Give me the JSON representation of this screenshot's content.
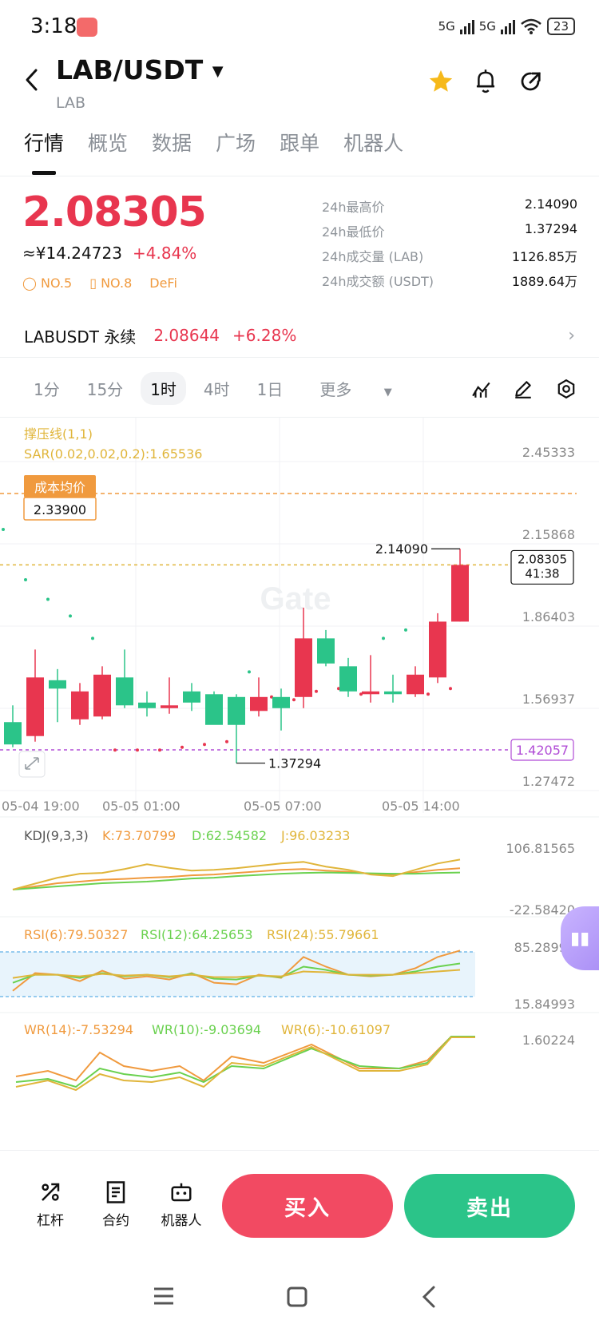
{
  "status_bar": {
    "time": "3:18",
    "network1": "5G",
    "network2": "5G",
    "battery": "23"
  },
  "header": {
    "pair": "LAB/USDT",
    "subtitle": "LAB"
  },
  "tabs": [
    {
      "label": "行情",
      "active": true
    },
    {
      "label": "概览",
      "active": false
    },
    {
      "label": "数据",
      "active": false
    },
    {
      "label": "广场",
      "active": false
    },
    {
      "label": "跟单",
      "active": false
    },
    {
      "label": "机器人",
      "active": false
    }
  ],
  "ticker": {
    "price": "2.08305",
    "cny": "≈¥14.24723",
    "change": "+4.84%",
    "tags": [
      "NO.5",
      "NO.8",
      "DeFi"
    ],
    "stats": [
      {
        "label": "24h最高价",
        "value": "2.14090"
      },
      {
        "label": "24h最低价",
        "value": "1.37294"
      },
      {
        "label": "24h成交量 (LAB)",
        "value": "1126.85万"
      },
      {
        "label": "24h成交额 (USDT)",
        "value": "1889.64万"
      }
    ]
  },
  "perpetual": {
    "name": "LABUSDT 永续",
    "price": "2.08644",
    "change": "+6.28%"
  },
  "timeframes": [
    {
      "label": "1分",
      "active": false
    },
    {
      "label": "15分",
      "active": false
    },
    {
      "label": "1时",
      "active": true
    },
    {
      "label": "4时",
      "active": false
    },
    {
      "label": "1日",
      "active": false
    },
    {
      "label": "更多",
      "active": false
    }
  ],
  "colors": {
    "up": "#e8364f",
    "down": "#2bc489",
    "orange": "#f09a3e",
    "purple": "#b04bd6",
    "yellow": "#e0b53a",
    "green_line": "#6ad14f"
  },
  "chart_data": {
    "type": "candlestick",
    "indicator_label": "撑压线(1,1)",
    "sar_label": "SAR(0.02,0.02,0.2):1.65536",
    "cost_label": "成本均价",
    "cost_value": "2.33900",
    "cost_line": 2.339,
    "support_value": "1.42057",
    "support_line": 1.42057,
    "current_price": "2.08305",
    "countdown": "41:38",
    "high_marker": "2.14090",
    "low_marker": "1.37294",
    "watermark": "Gate",
    "ylim": [
      1.27472,
      2.45333
    ],
    "y_ticks": [
      "2.45333",
      "2.15868",
      "1.86403",
      "1.56937",
      "1.27472"
    ],
    "y_tick_values": [
      2.45333,
      2.15868,
      1.86403,
      1.56937,
      1.27472
    ],
    "x_ticks": [
      "05-04 19:00",
      "05-05 01:00",
      "05-05 07:00",
      "05-05 14:00"
    ],
    "candles": [
      {
        "o": 1.52,
        "h": 1.58,
        "l": 1.43,
        "c": 1.44
      },
      {
        "o": 1.47,
        "h": 1.78,
        "l": 1.45,
        "c": 1.68
      },
      {
        "o": 1.67,
        "h": 1.71,
        "l": 1.52,
        "c": 1.64
      },
      {
        "o": 1.53,
        "h": 1.66,
        "l": 1.51,
        "c": 1.63
      },
      {
        "o": 1.54,
        "h": 1.72,
        "l": 1.53,
        "c": 1.69
      },
      {
        "o": 1.68,
        "h": 1.78,
        "l": 1.57,
        "c": 1.58
      },
      {
        "o": 1.59,
        "h": 1.63,
        "l": 1.54,
        "c": 1.57
      },
      {
        "o": 1.57,
        "h": 1.68,
        "l": 1.55,
        "c": 1.58
      },
      {
        "o": 1.63,
        "h": 1.66,
        "l": 1.56,
        "c": 1.59
      },
      {
        "o": 1.62,
        "h": 1.63,
        "l": 1.52,
        "c": 1.51
      },
      {
        "o": 1.61,
        "h": 1.62,
        "l": 1.37294,
        "c": 1.51
      },
      {
        "o": 1.56,
        "h": 1.68,
        "l": 1.54,
        "c": 1.61
      },
      {
        "o": 1.61,
        "h": 1.64,
        "l": 1.49,
        "c": 1.57
      },
      {
        "o": 1.61,
        "h": 1.93,
        "l": 1.57,
        "c": 1.82
      },
      {
        "o": 1.82,
        "h": 1.85,
        "l": 1.72,
        "c": 1.73
      },
      {
        "o": 1.72,
        "h": 1.75,
        "l": 1.61,
        "c": 1.63
      },
      {
        "o": 1.62,
        "h": 1.76,
        "l": 1.59,
        "c": 1.63
      },
      {
        "o": 1.63,
        "h": 1.69,
        "l": 1.59,
        "c": 1.62
      },
      {
        "o": 1.62,
        "h": 1.72,
        "l": 1.61,
        "c": 1.69
      },
      {
        "o": 1.68,
        "h": 1.91,
        "l": 1.66,
        "c": 1.88
      },
      {
        "o": 1.88,
        "h": 2.1409,
        "l": 1.88,
        "c": 2.08305
      }
    ],
    "sar_points": [
      2.21,
      2.03,
      1.96,
      1.9,
      1.82,
      1.42,
      1.42,
      1.42,
      1.43,
      1.44,
      1.45,
      1.7,
      1.61,
      1.6,
      1.63,
      1.64,
      1.62,
      1.82,
      1.85,
      1.62,
      1.64
    ],
    "kdj": {
      "label": "KDJ(9,3,3)",
      "k_label": "K:73.70799",
      "d_label": "D:62.54582",
      "j_label": "J:96.03233",
      "ymax": "106.81565",
      "ymin": "-22.58420",
      "k": [
        20,
        28,
        36,
        40,
        45,
        47,
        50,
        52,
        56,
        58,
        62,
        66,
        70,
        72,
        68,
        65,
        60,
        58,
        64,
        70,
        74
      ],
      "d": [
        20,
        24,
        28,
        32,
        36,
        38,
        40,
        44,
        48,
        50,
        54,
        57,
        60,
        62,
        63,
        62,
        61,
        60,
        60,
        62,
        63
      ],
      "j": [
        20,
        35,
        50,
        60,
        62,
        72,
        84,
        75,
        68,
        70,
        74,
        80,
        86,
        90,
        78,
        70,
        58,
        54,
        70,
        86,
        96
      ]
    },
    "rsi": {
      "rsi6_label": "RSI(6):79.50327",
      "rsi12_label": "RSI(12):64.25653",
      "rsi24_label": "RSI(24):55.79661",
      "ymax": "85.28994",
      "ymin": "15.84993",
      "rsi6": [
        30,
        52,
        50,
        42,
        55,
        45,
        48,
        44,
        52,
        40,
        38,
        50,
        46,
        72,
        60,
        50,
        48,
        50,
        58,
        72,
        80
      ],
      "rsi12": [
        40,
        50,
        50,
        46,
        52,
        48,
        50,
        47,
        51,
        45,
        44,
        49,
        47,
        60,
        56,
        50,
        49,
        50,
        54,
        60,
        64
      ],
      "rsi24": [
        46,
        50,
        50,
        48,
        51,
        49,
        50,
        48,
        50,
        47,
        47,
        49,
        48,
        54,
        53,
        50,
        50,
        50,
        52,
        54,
        56
      ]
    },
    "wr": {
      "wr14_label": "WR(14):-7.53294",
      "wr10_label": "WR(10):-9.03694",
      "wr6_label": "WR(6):-10.61097",
      "ymax": "1.60224"
    }
  },
  "bottom": {
    "tools": [
      {
        "label": "杠杆"
      },
      {
        "label": "合约"
      },
      {
        "label": "机器人"
      }
    ],
    "buy": "买入",
    "sell": "卖出"
  }
}
